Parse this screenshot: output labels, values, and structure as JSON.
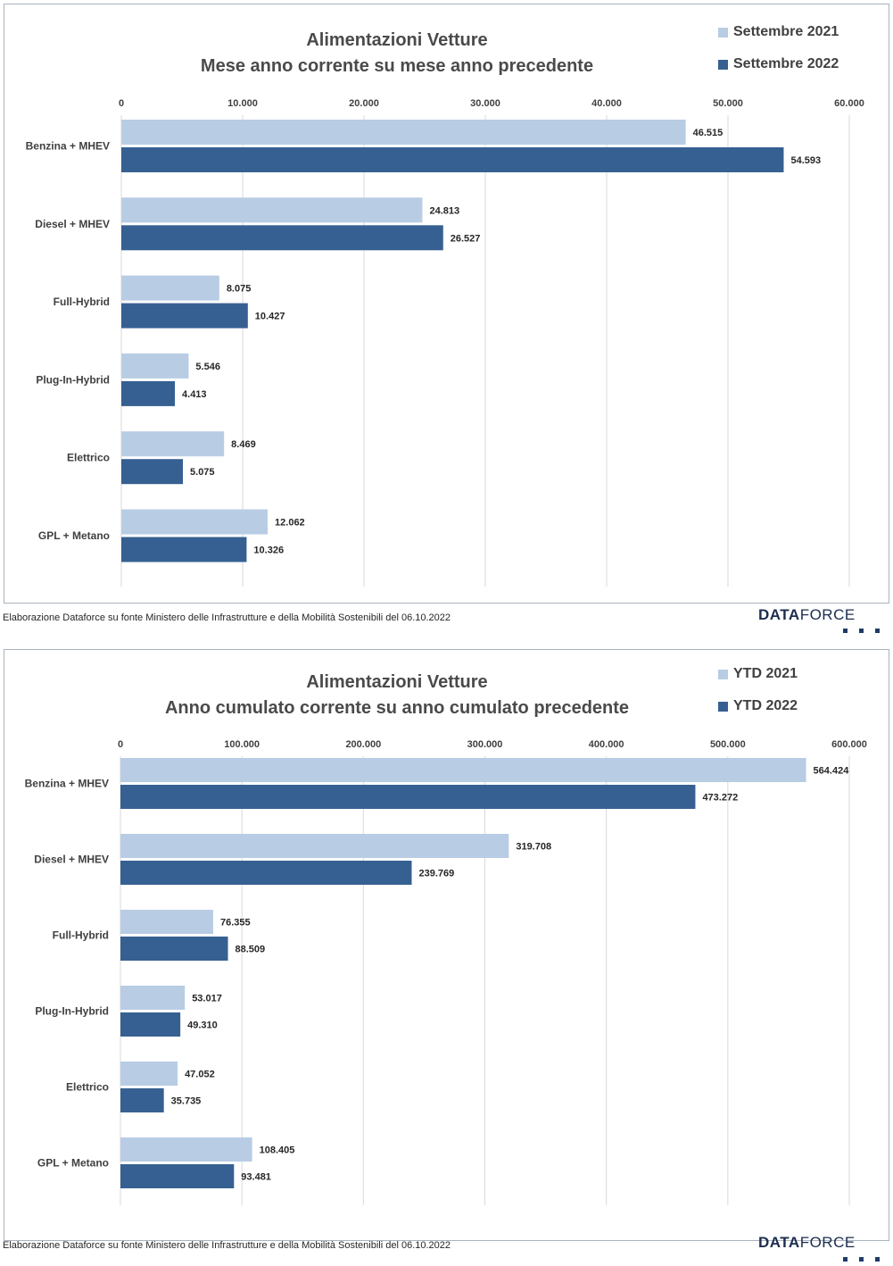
{
  "colors": {
    "light_series": "#b8cce4",
    "dark_series": "#366092",
    "gridline": "#d9d9d9"
  },
  "source_note": "Elaborazione Dataforce su fonte Ministero delle Infrastrutture e della Mobilità Sostenibili del 06.10.2022",
  "logo": {
    "bold": "DATA",
    "light": "FORCE"
  },
  "chart_data": [
    {
      "type": "bar",
      "orientation": "horizontal",
      "title_line1": "Alimentazioni Vetture",
      "title_line2": "Mese anno corrente su mese anno precedente",
      "categories": [
        "Benzina + MHEV",
        "Diesel + MHEV",
        "Full-Hybrid",
        "Plug-In-Hybrid",
        "Elettrico",
        "GPL + Metano"
      ],
      "series": [
        {
          "name": "Settembre 2021",
          "values": [
            46515,
            24813,
            8075,
            5546,
            8469,
            12062
          ],
          "labels": [
            "46.515",
            "24.813",
            "8.075",
            "5.546",
            "8.469",
            "12.062"
          ]
        },
        {
          "name": "Settembre 2022",
          "values": [
            54593,
            26527,
            10427,
            4413,
            5075,
            10326
          ],
          "labels": [
            "54.593",
            "26.527",
            "10.427",
            "4.413",
            "5.075",
            "10.326"
          ]
        }
      ],
      "xlim": [
        0,
        60000
      ],
      "ticks": [
        0,
        10000,
        20000,
        30000,
        40000,
        50000,
        60000
      ],
      "tick_labels": [
        "0",
        "10.000",
        "20.000",
        "30.000",
        "40.000",
        "50.000",
        "60.000"
      ],
      "grid": true,
      "legend": "top-right"
    },
    {
      "type": "bar",
      "orientation": "horizontal",
      "title_line1": "Alimentazioni Vetture",
      "title_line2": "Anno cumulato corrente su anno cumulato precedente",
      "categories": [
        "Benzina + MHEV",
        "Diesel + MHEV",
        "Full-Hybrid",
        "Plug-In-Hybrid",
        "Elettrico",
        "GPL + Metano"
      ],
      "series": [
        {
          "name": "YTD 2021",
          "values": [
            564424,
            319708,
            76355,
            53017,
            47052,
            108405
          ],
          "labels": [
            "564.424",
            "319.708",
            "76.355",
            "53.017",
            "47.052",
            "108.405"
          ]
        },
        {
          "name": "YTD 2022",
          "values": [
            473272,
            239769,
            88509,
            49310,
            35735,
            93481
          ],
          "labels": [
            "473.272",
            "239.769",
            "88.509",
            "49.310",
            "35.735",
            "93.481"
          ]
        }
      ],
      "xlim": [
        0,
        600000
      ],
      "ticks": [
        0,
        100000,
        200000,
        300000,
        400000,
        500000,
        600000
      ],
      "tick_labels": [
        "0",
        "100.000",
        "200.000",
        "300.000",
        "400.000",
        "500.000",
        "600.000"
      ],
      "grid": true,
      "legend": "top-right"
    }
  ]
}
